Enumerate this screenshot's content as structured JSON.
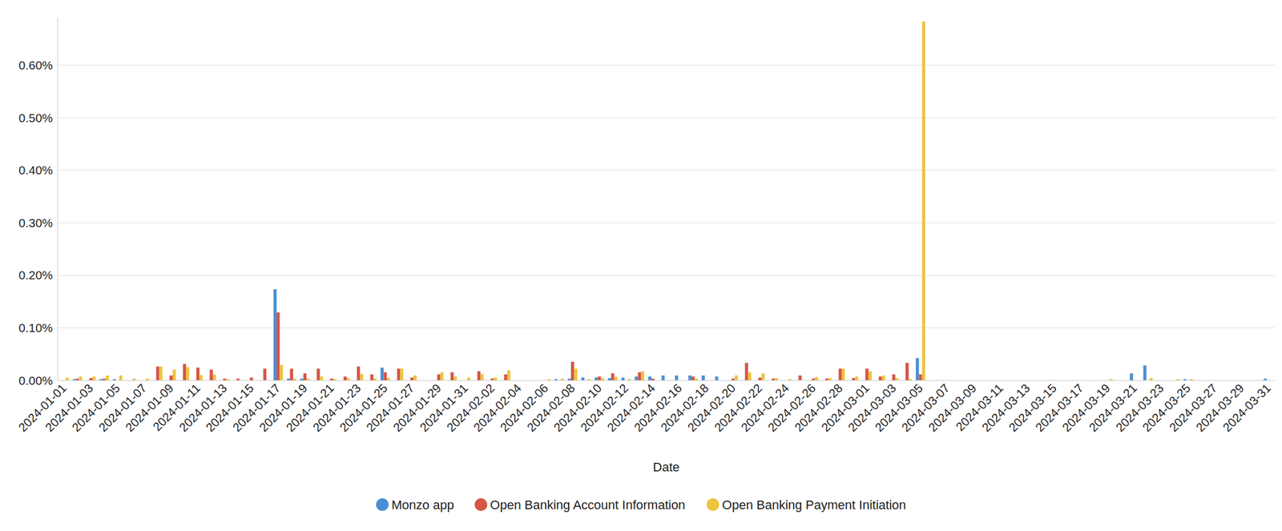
{
  "chart_data": {
    "type": "bar",
    "x_label": "Date",
    "categories": [
      "2024-01-01",
      null,
      "2024-01-03",
      null,
      "2024-01-05",
      null,
      "2024-01-07",
      null,
      "2024-01-09",
      null,
      "2024-01-11",
      null,
      "2024-01-13",
      null,
      "2024-01-15",
      null,
      "2024-01-17",
      null,
      "2024-01-19",
      null,
      "2024-01-21",
      null,
      "2024-01-23",
      null,
      "2024-01-25",
      null,
      "2024-01-27",
      null,
      "2024-01-29",
      null,
      "2024-01-31",
      null,
      "2024-02-02",
      null,
      "2024-02-04",
      null,
      "2024-02-06",
      null,
      "2024-02-08",
      null,
      "2024-02-10",
      null,
      "2024-02-12",
      null,
      "2024-02-14",
      null,
      "2024-02-16",
      null,
      "2024-02-18",
      null,
      "2024-02-20",
      null,
      "2024-02-22",
      null,
      "2024-02-24",
      null,
      "2024-02-26",
      null,
      "2024-02-28",
      null,
      "2024-03-01",
      null,
      "2024-03-03",
      null,
      "2024-03-05",
      null,
      "2024-03-07",
      null,
      "2024-03-09",
      null,
      "2024-03-11",
      null,
      "2024-03-13",
      null,
      "2024-03-15",
      null,
      "2024-03-17",
      null,
      "2024-03-19",
      null,
      "2024-03-21",
      null,
      "2024-03-23",
      null,
      "2024-03-25",
      null,
      "2024-03-27",
      null,
      "2024-03-29",
      null,
      "2024-03-31"
    ],
    "series": [
      {
        "name": "Monzo app",
        "color": "#4a8fd4",
        "values": [
          0,
          0.002,
          0,
          0.002,
          0.002,
          0,
          0,
          0,
          0,
          0,
          0,
          0,
          0,
          0,
          0,
          0,
          0.173,
          0.003,
          0.003,
          0,
          0,
          0,
          0,
          0,
          0.024,
          0,
          0,
          0,
          0,
          0,
          0,
          0,
          0,
          0,
          0,
          0,
          0,
          0.002,
          0.003,
          0.005,
          0.005,
          0.004,
          0.005,
          0.007,
          0.007,
          0.009,
          0.009,
          0.009,
          0.009,
          0.007,
          0,
          0,
          0,
          0,
          0,
          0,
          0,
          0,
          0,
          0,
          0,
          0,
          0,
          0,
          0.042,
          0,
          0,
          0,
          0,
          0,
          0,
          0,
          0,
          0,
          0,
          0,
          0,
          0,
          0,
          0,
          0.013,
          0.028,
          0,
          0,
          0.002,
          0,
          0,
          0,
          0,
          0,
          0.003
        ]
      },
      {
        "name": "Open Banking Account Information",
        "color": "#d65545",
        "values": [
          0,
          0.003,
          0.004,
          0.003,
          0,
          0,
          0,
          0.026,
          0.009,
          0.031,
          0.024,
          0.02,
          0.003,
          0.003,
          0.005,
          0.022,
          0.129,
          0.022,
          0.013,
          0.022,
          0.003,
          0.007,
          0.026,
          0.011,
          0.015,
          0.022,
          0.005,
          0,
          0.011,
          0.015,
          0,
          0.017,
          0.003,
          0.011,
          0,
          0,
          0,
          0,
          0.035,
          0,
          0.007,
          0.013,
          0,
          0.015,
          0.003,
          0,
          0,
          0.007,
          0,
          0,
          0.003,
          0.033,
          0.005,
          0.003,
          0,
          0.009,
          0.003,
          0.003,
          0.022,
          0.004,
          0.022,
          0.007,
          0.011,
          0.033,
          0.011,
          0,
          0,
          0,
          0,
          0,
          0,
          0,
          0,
          0,
          0,
          0,
          0,
          0,
          0,
          0,
          0,
          0,
          0,
          0,
          0,
          0,
          0,
          0,
          0,
          0,
          0
        ]
      },
      {
        "name": "Open Banking Payment Initiation",
        "color": "#ecc440",
        "values": [
          0.005,
          0.007,
          0.007,
          0.009,
          0.009,
          0.003,
          0.003,
          0.026,
          0.02,
          0.025,
          0.01,
          0.011,
          0.002,
          0,
          0,
          0,
          0.029,
          0.003,
          0.003,
          0.007,
          0.002,
          0.004,
          0.012,
          0.003,
          0.005,
          0.022,
          0.009,
          0,
          0.015,
          0.007,
          0.005,
          0.012,
          0.005,
          0.019,
          0,
          0,
          0.002,
          0.003,
          0.022,
          0.002,
          0.004,
          0.007,
          0.002,
          0.017,
          0,
          0,
          0,
          0.003,
          0,
          0,
          0.009,
          0.015,
          0.013,
          0.004,
          0.002,
          0,
          0.006,
          0.004,
          0.022,
          0.007,
          0.017,
          0.009,
          0.004,
          0.002,
          0.683,
          0,
          0,
          0,
          0,
          0,
          0,
          0,
          0,
          0,
          0,
          0,
          0,
          0,
          0.002,
          0,
          0,
          0.004,
          0,
          0.002,
          0.002,
          0,
          0,
          0,
          0,
          0,
          0
        ]
      }
    ],
    "ylim": [
      0,
      0.69
    ],
    "yticks": [
      {
        "value": 0,
        "label": "0.00%"
      },
      {
        "value": 0.1,
        "label": "0.10%"
      },
      {
        "value": 0.2,
        "label": "0.20%"
      },
      {
        "value": 0.3,
        "label": "0.30%"
      },
      {
        "value": 0.4,
        "label": "0.40%"
      },
      {
        "value": 0.5,
        "label": "0.50%"
      },
      {
        "value": 0.6,
        "label": "0.60%"
      }
    ],
    "grid": true,
    "legend": "bottom"
  }
}
